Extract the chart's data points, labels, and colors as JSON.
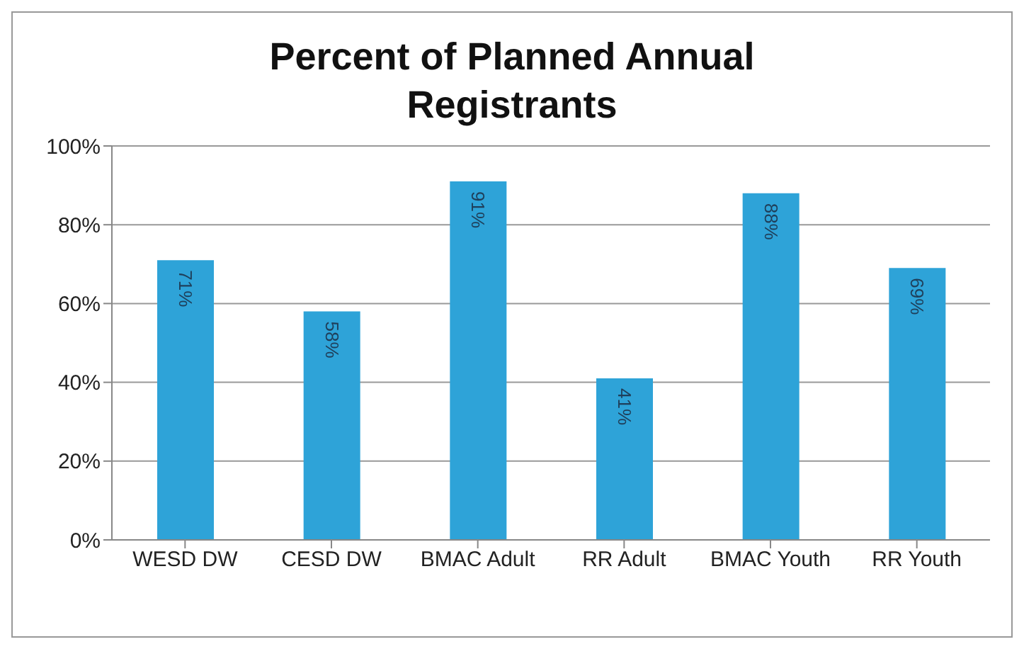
{
  "chart_data": {
    "type": "bar",
    "title": "Percent of Planned Annual Registrants",
    "categories": [
      "WESD DW",
      "CESD DW",
      "BMAC Adult",
      "RR Adult",
      "BMAC Youth",
      "RR Youth"
    ],
    "values": [
      71,
      58,
      91,
      41,
      88,
      69
    ],
    "value_labels": [
      "71%",
      "58%",
      "91%",
      "41%",
      "88%",
      "69%"
    ],
    "color": "#2ea3d8",
    "ylim": [
      0,
      100
    ],
    "yticks": [
      {
        "value": 0,
        "label": "0%"
      },
      {
        "value": 20,
        "label": "20%"
      },
      {
        "value": 40,
        "label": "40%"
      },
      {
        "value": 60,
        "label": "60%"
      },
      {
        "value": 80,
        "label": "80%"
      },
      {
        "value": 100,
        "label": "100%"
      }
    ],
    "grid": "y"
  }
}
